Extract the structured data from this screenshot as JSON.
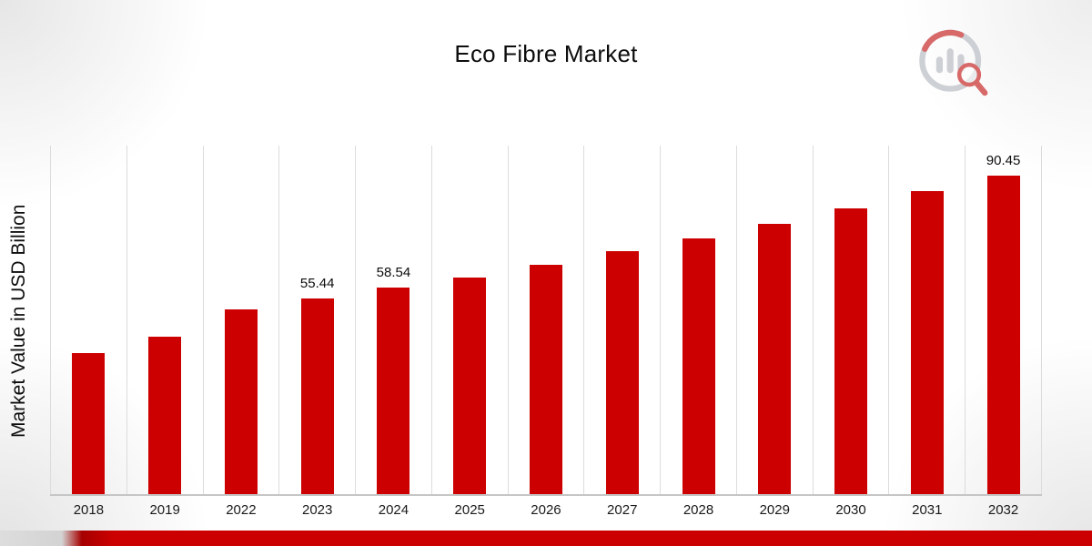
{
  "header": {
    "title": "Eco Fibre Market"
  },
  "chart_data": {
    "type": "bar",
    "title": "Eco Fibre Market",
    "xlabel": "",
    "ylabel": "Market Value in USD Billion",
    "categories": [
      "2018",
      "2019",
      "2022",
      "2023",
      "2024",
      "2025",
      "2026",
      "2027",
      "2028",
      "2029",
      "2030",
      "2031",
      "2032"
    ],
    "values": [
      40.1,
      44.6,
      52.4,
      55.44,
      58.54,
      61.5,
      65.2,
      69.0,
      72.6,
      76.8,
      81.2,
      86.0,
      90.45
    ],
    "data_labels": {
      "2023": "55.44",
      "2024": "58.54",
      "2032": "90.45"
    },
    "bar_color": "#cc0000",
    "ylim": [
      0,
      99.5
    ],
    "grid": "vertical-only",
    "legend": "none"
  },
  "branding": {
    "logo_icon": "chart-magnifier-icon",
    "accent_red": "#cc0000",
    "logo_gray": "#c2c5cb",
    "logo_red": "#cf4545"
  }
}
